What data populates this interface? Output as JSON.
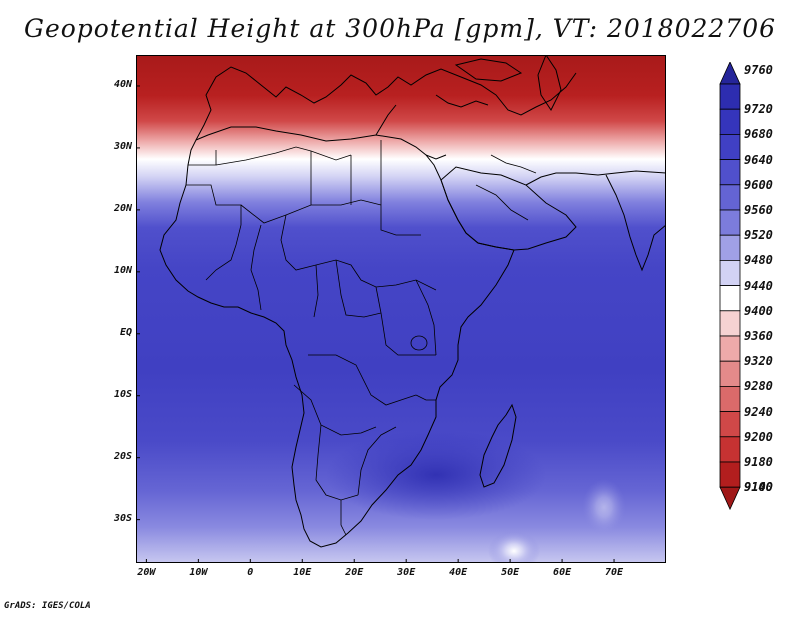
{
  "title": "Geopotential Height at 300hPa [gpm], VT: 2018022706",
  "credit": "GrADS: IGES/COLA",
  "map": {
    "lon_range": [
      -22,
      80
    ],
    "lat_range": [
      -37,
      45
    ],
    "lat_ticks": [
      {
        "value": 40,
        "label": "40N"
      },
      {
        "value": 30,
        "label": "30N"
      },
      {
        "value": 20,
        "label": "20N"
      },
      {
        "value": 10,
        "label": "10N"
      },
      {
        "value": 0,
        "label": "EQ"
      },
      {
        "value": -10,
        "label": "10S"
      },
      {
        "value": -20,
        "label": "20S"
      },
      {
        "value": -30,
        "label": "30S"
      }
    ],
    "lon_ticks": [
      {
        "value": -20,
        "label": "20W"
      },
      {
        "value": -10,
        "label": "10W"
      },
      {
        "value": 0,
        "label": "0"
      },
      {
        "value": 10,
        "label": "10E"
      },
      {
        "value": 20,
        "label": "20E"
      },
      {
        "value": 30,
        "label": "30E"
      },
      {
        "value": 40,
        "label": "40E"
      },
      {
        "value": 50,
        "label": "50E"
      },
      {
        "value": 60,
        "label": "60E"
      },
      {
        "value": 70,
        "label": "70E"
      }
    ]
  },
  "colorbar": {
    "levels": [
      "9760",
      "9720",
      "9680",
      "9640",
      "9600",
      "9560",
      "9520",
      "9480",
      "9440",
      "9400",
      "9360",
      "9320",
      "9280",
      "9240",
      "9200",
      "9180",
      "9140",
      "9100"
    ],
    "colors": [
      "#25259a",
      "#2d2db0",
      "#3535bc",
      "#4040c4",
      "#5050cc",
      "#6464d4",
      "#7c7cdc",
      "#a0a0e6",
      "#d2d2f4",
      "#ffffff",
      "#f6d2d2",
      "#eeaaaa",
      "#e48a8a",
      "#da6a6a",
      "#d04848",
      "#c63232",
      "#b21e1e",
      "#a01818"
    ]
  }
}
